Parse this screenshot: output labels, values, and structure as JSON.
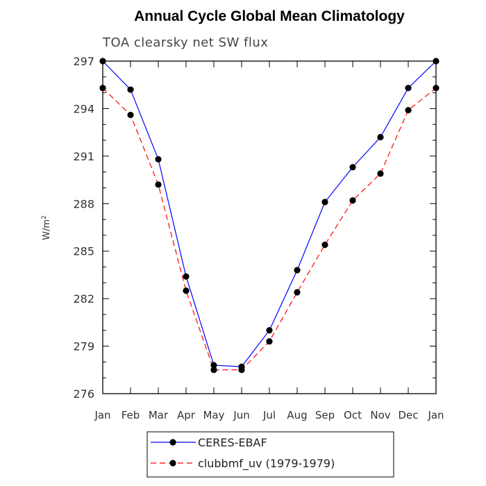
{
  "chart_data": {
    "type": "line",
    "title": "Annual Cycle Global Mean Climatology",
    "subtitle": "TOA clearsky net SW flux",
    "ylabel_base": "W/m",
    "ylabel_sup": "2",
    "ylim": [
      276,
      297
    ],
    "yticks": [
      "276",
      "279",
      "282",
      "285",
      "288",
      "291",
      "294",
      "297"
    ],
    "x": [
      "Jan",
      "Feb",
      "Mar",
      "Apr",
      "May",
      "Jun",
      "Jul",
      "Aug",
      "Sep",
      "Oct",
      "Nov",
      "Dec",
      "Jan"
    ],
    "grid": false,
    "legend_placement": "bottom",
    "series": [
      {
        "name": "CERES-EBAF",
        "color": "#0000ff",
        "dash": "solid",
        "values": [
          297.0,
          295.2,
          290.8,
          283.4,
          277.8,
          277.7,
          280.0,
          283.8,
          288.1,
          290.3,
          292.2,
          295.3,
          297.0
        ]
      },
      {
        "name": "clubbmf_uv (1979-1979)",
        "color": "#ff0000",
        "dash": "dashed",
        "values": [
          295.3,
          293.6,
          289.2,
          282.5,
          277.5,
          277.5,
          279.3,
          282.4,
          285.4,
          288.2,
          289.9,
          293.9,
          295.3
        ]
      }
    ]
  }
}
